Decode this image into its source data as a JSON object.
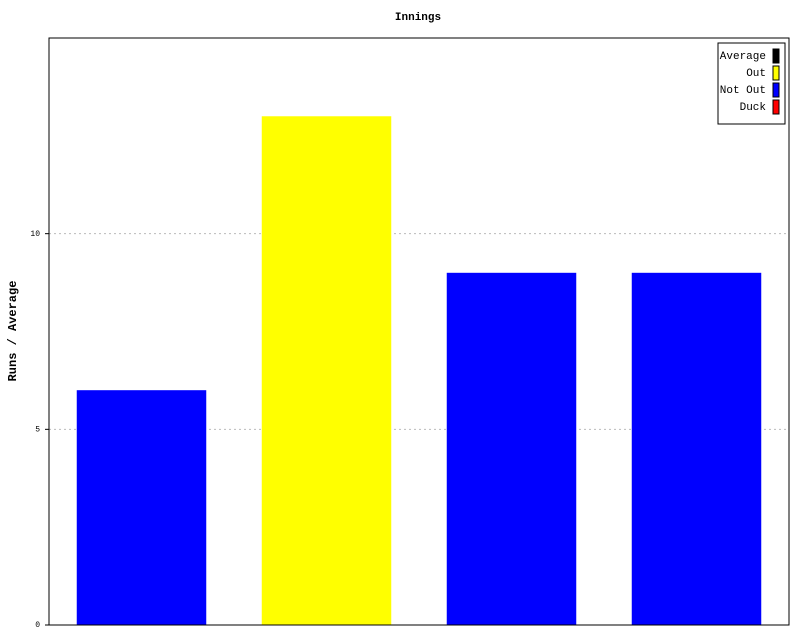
{
  "chart_data": {
    "type": "bar",
    "title": "Innings",
    "y_label": "Runs / Average",
    "categories": [
      null,
      null,
      null,
      null
    ],
    "values": [
      6,
      13,
      9,
      9
    ],
    "bar_colors": [
      "#0000ff",
      "#ffff00",
      "#0000ff",
      "#0000ff"
    ],
    "ylim": [
      0,
      15
    ],
    "yticks": [
      0,
      5,
      10
    ],
    "grid": true,
    "legend_position": "top-right",
    "legend": [
      {
        "name": "Average",
        "color": "#000000"
      },
      {
        "name": "Out",
        "color": "#ffff00"
      },
      {
        "name": "Not Out",
        "color": "#0000ff"
      },
      {
        "name": "Duck",
        "color": "#ff0000"
      }
    ]
  }
}
